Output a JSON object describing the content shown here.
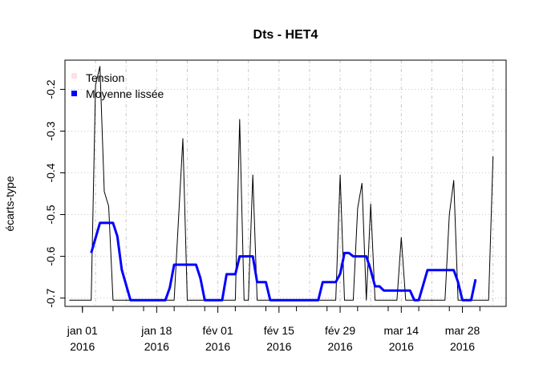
{
  "chart_data": {
    "type": "line",
    "title": "Dts - HET4",
    "xlabel": "",
    "ylabel": "écarts-type",
    "ylim": [
      -0.72,
      -0.13
    ],
    "xlim": [
      "2015-12-28",
      "2016-04-07"
    ],
    "y_ticks": [
      -0.7,
      -0.6,
      -0.5,
      -0.4,
      -0.3,
      -0.2
    ],
    "y_tick_labels": [
      "-0.7",
      "-0.6",
      "-0.5",
      "-0.4",
      "-0.3",
      "-0.2"
    ],
    "x_ticks": [
      {
        "date": "2016-01-01",
        "label1": "jan 01",
        "label2": "2016"
      },
      {
        "date": "2016-01-18",
        "label1": "jan 18",
        "label2": "2016"
      },
      {
        "date": "2016-02-01",
        "label1": "fév 01",
        "label2": "2016"
      },
      {
        "date": "2016-02-15",
        "label1": "fév 15",
        "label2": "2016"
      },
      {
        "date": "2016-02-29",
        "label1": "fév 29",
        "label2": "2016"
      },
      {
        "date": "2016-03-14",
        "label1": "mar 14",
        "label2": "2016"
      },
      {
        "date": "2016-03-28",
        "label1": "mar 28",
        "label2": "2016"
      }
    ],
    "grid": true,
    "legend_position": "top-left",
    "series": [
      {
        "name": "Tension",
        "legend_color": "#ffe0e4",
        "color": "#000000",
        "points": [
          [
            "2015-12-29",
            -0.705
          ],
          [
            "2016-01-01",
            -0.705
          ],
          [
            "2016-01-03",
            -0.705
          ],
          [
            "2016-01-04",
            -0.19
          ],
          [
            "2016-01-05",
            -0.145
          ],
          [
            "2016-01-06",
            -0.445
          ],
          [
            "2016-01-07",
            -0.48
          ],
          [
            "2016-01-08",
            -0.705
          ],
          [
            "2016-01-20",
            -0.705
          ],
          [
            "2016-01-22",
            -0.705
          ],
          [
            "2016-01-24",
            -0.318
          ],
          [
            "2016-01-25",
            -0.705
          ],
          [
            "2016-02-05",
            -0.705
          ],
          [
            "2016-02-06",
            -0.272
          ],
          [
            "2016-02-07",
            -0.705
          ],
          [
            "2016-02-08",
            -0.705
          ],
          [
            "2016-02-09",
            -0.405
          ],
          [
            "2016-02-10",
            -0.705
          ],
          [
            "2016-02-28",
            -0.705
          ],
          [
            "2016-02-29",
            -0.405
          ],
          [
            "2016-03-01",
            -0.705
          ],
          [
            "2016-03-02",
            -0.705
          ],
          [
            "2016-03-03",
            -0.705
          ],
          [
            "2016-03-04",
            -0.485
          ],
          [
            "2016-03-05",
            -0.425
          ],
          [
            "2016-03-06",
            -0.705
          ],
          [
            "2016-03-07",
            -0.475
          ],
          [
            "2016-03-08",
            -0.705
          ],
          [
            "2016-03-13",
            -0.705
          ],
          [
            "2016-03-14",
            -0.555
          ],
          [
            "2016-03-15",
            -0.705
          ],
          [
            "2016-03-22",
            -0.705
          ],
          [
            "2016-03-24",
            -0.705
          ],
          [
            "2016-03-25",
            -0.5
          ],
          [
            "2016-03-26",
            -0.418
          ],
          [
            "2016-03-27",
            -0.705
          ],
          [
            "2016-04-02",
            -0.705
          ],
          [
            "2016-04-03",
            -0.705
          ],
          [
            "2016-04-04",
            -0.36
          ]
        ]
      },
      {
        "name": "Moyenne lissée",
        "legend_color": "#0000ff",
        "color": "#0000ff",
        "points": [
          [
            "2016-01-03",
            -0.592
          ],
          [
            "2016-01-05",
            -0.52
          ],
          [
            "2016-01-08",
            -0.52
          ],
          [
            "2016-01-09",
            -0.552
          ],
          [
            "2016-01-10",
            -0.632
          ],
          [
            "2016-01-12",
            -0.705
          ],
          [
            "2016-01-20",
            -0.705
          ],
          [
            "2016-01-21",
            -0.675
          ],
          [
            "2016-01-22",
            -0.62
          ],
          [
            "2016-01-27",
            -0.62
          ],
          [
            "2016-01-28",
            -0.652
          ],
          [
            "2016-01-29",
            -0.705
          ],
          [
            "2016-02-02",
            -0.705
          ],
          [
            "2016-02-03",
            -0.643
          ],
          [
            "2016-02-05",
            -0.643
          ],
          [
            "2016-02-06",
            -0.6
          ],
          [
            "2016-02-09",
            -0.6
          ],
          [
            "2016-02-10",
            -0.662
          ],
          [
            "2016-02-12",
            -0.662
          ],
          [
            "2016-02-13",
            -0.705
          ],
          [
            "2016-02-24",
            -0.705
          ],
          [
            "2016-02-25",
            -0.662
          ],
          [
            "2016-02-28",
            -0.662
          ],
          [
            "2016-02-29",
            -0.642
          ],
          [
            "2016-03-01",
            -0.592
          ],
          [
            "2016-03-02",
            -0.592
          ],
          [
            "2016-03-03",
            -0.6
          ],
          [
            "2016-03-06",
            -0.6
          ],
          [
            "2016-03-07",
            -0.633
          ],
          [
            "2016-03-08",
            -0.672
          ],
          [
            "2016-03-09",
            -0.672
          ],
          [
            "2016-03-10",
            -0.682
          ],
          [
            "2016-03-16",
            -0.682
          ],
          [
            "2016-03-17",
            -0.705
          ],
          [
            "2016-03-18",
            -0.705
          ],
          [
            "2016-03-20",
            -0.633
          ],
          [
            "2016-03-26",
            -0.633
          ],
          [
            "2016-03-27",
            -0.662
          ],
          [
            "2016-03-28",
            -0.705
          ],
          [
            "2016-03-30",
            -0.705
          ],
          [
            "2016-03-31",
            -0.655
          ]
        ]
      }
    ]
  }
}
